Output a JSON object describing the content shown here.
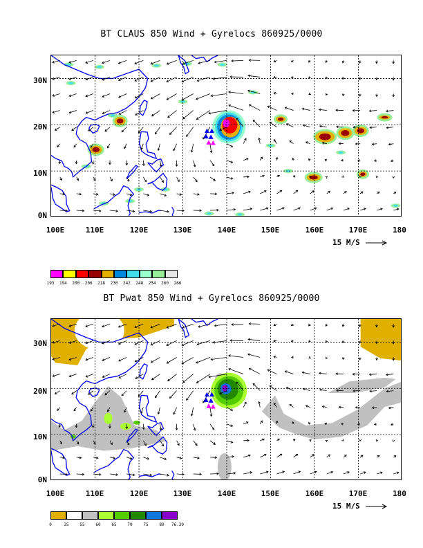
{
  "panel1": {
    "title": "BT CLAUS 850 Wind + Gyrelocs 860925/0000",
    "legend_ticks": [
      "193",
      "194",
      "200",
      "206",
      "218",
      "230",
      "242",
      "248",
      "254",
      "260",
      "266"
    ],
    "legend_colors": [
      "#ff00ff",
      "#ffff00",
      "#ff0000",
      "#990000",
      "#e6b000",
      "#0088dd",
      "#44ddee",
      "#99ffcc",
      "#99ee99",
      "#e6e6e6"
    ]
  },
  "panel2": {
    "title": "BT Pwat 850 Wind + Gyrelocs 860925/0000",
    "legend_ticks": [
      "0",
      "35",
      "55",
      "60",
      "65",
      "70",
      "75",
      "80",
      "76.39"
    ],
    "legend_colors": [
      "#e0b000",
      "#ffffff",
      "#c0c0c0",
      "#aaff33",
      "#55cc00",
      "#228800",
      "#1177dd",
      "#8800cc"
    ]
  },
  "axes": {
    "lat_labels": [
      "30N",
      "20N",
      "10N",
      "0N"
    ],
    "lon_labels": [
      "100E",
      "110E",
      "120E",
      "130E",
      "140E",
      "150E",
      "160E",
      "170E",
      "180"
    ],
    "lat_range": [
      0,
      35
    ],
    "lon_range": [
      100,
      180
    ]
  },
  "reference_vector": {
    "label": "15 M/S"
  },
  "gyre_locations": [
    {
      "lon": 135.5,
      "lat": 18.6,
      "color": "#0000ff"
    },
    {
      "lon": 136.6,
      "lat": 18.6,
      "color": "#0000ff"
    },
    {
      "lon": 135.3,
      "lat": 17.4,
      "color": "#0000ff"
    },
    {
      "lon": 136.4,
      "lat": 17.3,
      "color": "#0000ff"
    },
    {
      "lon": 135.9,
      "lat": 16.1,
      "color": "#ff00ff"
    },
    {
      "lon": 136.9,
      "lat": 16.0,
      "color": "#ff00ff"
    }
  ],
  "storm_center": {
    "lon": 140.5,
    "lat": 19.5
  }
}
